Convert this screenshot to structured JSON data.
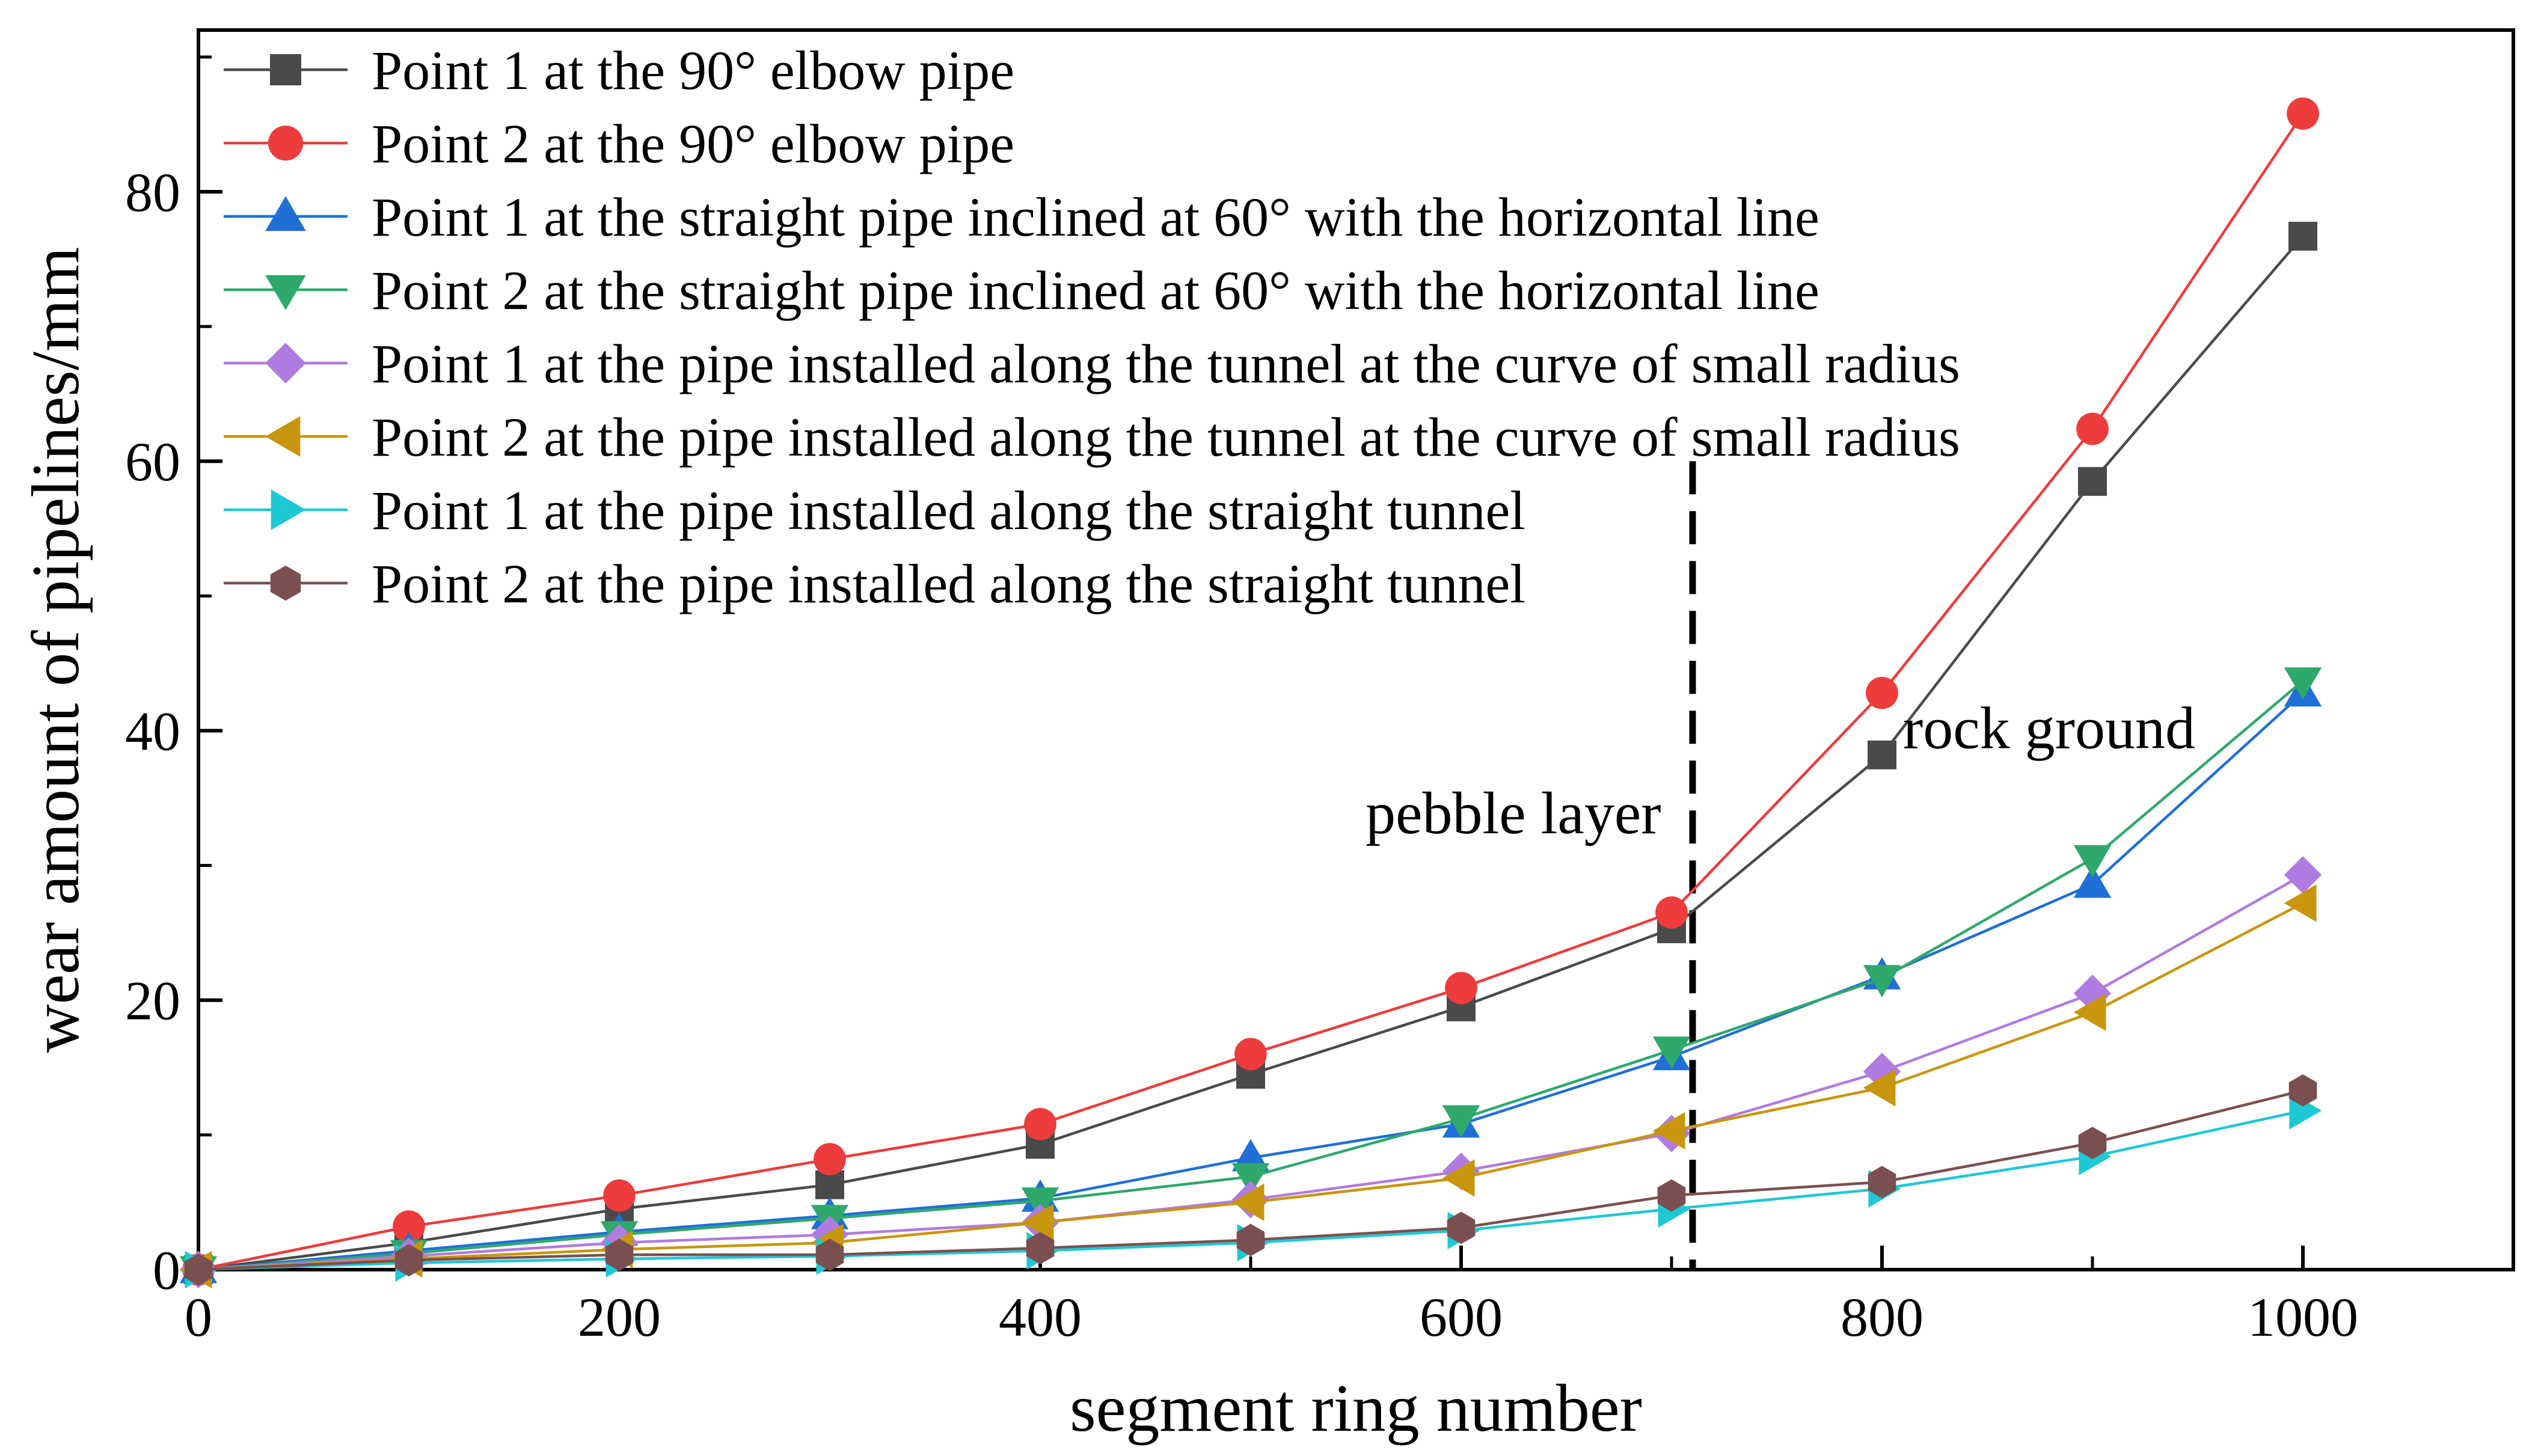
{
  "chart_data": {
    "type": "line",
    "title": "",
    "xlabel": "segment ring number",
    "ylabel": "wear amount of pipelines/mm",
    "xlim": [
      0,
      1100
    ],
    "ylim": [
      0,
      92
    ],
    "xticks": [
      0,
      200,
      400,
      600,
      800,
      1000
    ],
    "yticks": [
      0,
      20,
      40,
      60,
      80
    ],
    "x_tick_labels": [
      "0",
      "200",
      "400",
      "600",
      "800",
      "1000"
    ],
    "y_tick_labels": [
      "0",
      "20",
      "40",
      "60",
      "80"
    ],
    "grid": false,
    "legend_position": "top-left",
    "x": [
      0,
      100,
      200,
      300,
      400,
      500,
      600,
      700,
      800,
      900,
      1000
    ],
    "series": [
      {
        "name": "Point 1 at the 90° elbow pipe",
        "color": "#4a4a4a",
        "marker": "square",
        "values": [
          0,
          2.0,
          4.5,
          6.3,
          9.3,
          14.5,
          19.5,
          25.3,
          38.2,
          58.5,
          76.7
        ]
      },
      {
        "name": "Point 2 at the 90° elbow pipe",
        "color": "#ee3b3b",
        "marker": "circle",
        "values": [
          0,
          3.2,
          5.5,
          8.2,
          10.8,
          16.0,
          20.9,
          26.5,
          42.8,
          62.4,
          85.8
        ]
      },
      {
        "name": "Point 1 at the straight pipe inclined at 60° with the horizontal line",
        "color": "#1f6fd6",
        "marker": "triangle-up",
        "values": [
          0,
          1.4,
          2.8,
          4.0,
          5.3,
          8.3,
          10.8,
          15.8,
          21.8,
          28.6,
          42.8
        ]
      },
      {
        "name": "Point 2 at the straight pipe inclined at 60° with the horizontal line",
        "color": "#2fa86c",
        "marker": "triangle-down",
        "values": [
          0,
          1.2,
          2.6,
          3.8,
          5.1,
          6.9,
          11.2,
          16.3,
          21.6,
          30.5,
          43.7
        ]
      },
      {
        "name": "Point 1 at the pipe installed along the tunnel at the curve of small radius",
        "color": "#b07be0",
        "marker": "diamond",
        "values": [
          0,
          1.0,
          2.0,
          2.6,
          3.5,
          5.2,
          7.3,
          10.1,
          14.7,
          20.5,
          29.3
        ]
      },
      {
        "name": "Point 2 at the pipe installed along the tunnel at the curve of small radius",
        "color": "#c8960c",
        "marker": "triangle-left",
        "values": [
          0,
          0.8,
          1.5,
          2.0,
          3.5,
          5.0,
          6.8,
          10.3,
          13.5,
          19.1,
          27.2
        ]
      },
      {
        "name": "Point 1 at the pipe installed along the straight tunnel",
        "color": "#1ec8d4",
        "marker": "triangle-right",
        "values": [
          0,
          0.5,
          0.8,
          1.0,
          1.4,
          2.0,
          2.9,
          4.5,
          6.0,
          8.4,
          11.8
        ]
      },
      {
        "name": "Point 2 at the pipe installed along the straight tunnel",
        "color": "#7b4f4f",
        "marker": "hexagon",
        "values": [
          0,
          0.7,
          1.1,
          1.1,
          1.6,
          2.2,
          3.1,
          5.5,
          6.5,
          9.4,
          13.3
        ]
      }
    ],
    "divider": {
      "x": 710,
      "y_top": 60
    },
    "annotations": [
      {
        "text": "pebble layer",
        "x": 695,
        "y": 32.4,
        "anchor": "end"
      },
      {
        "text": "rock ground",
        "x": 810,
        "y": 38.7,
        "anchor": "start"
      }
    ]
  }
}
